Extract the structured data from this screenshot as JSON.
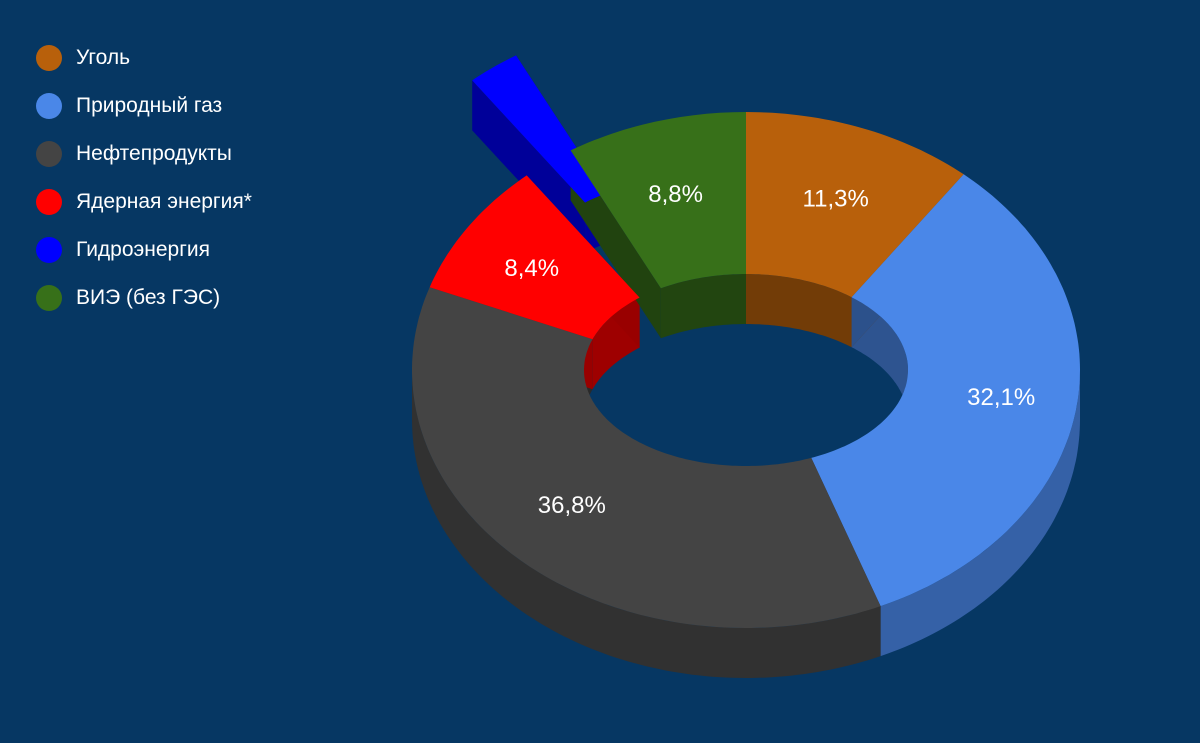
{
  "chart_data": {
    "type": "pie",
    "title": "",
    "categories": [
      "Уголь",
      "Природный газ",
      "Нефтепродукты",
      "Ядерная энергия*",
      "Гидроэнергия",
      "ВИЭ (без ГЭС)"
    ],
    "values": [
      11.3,
      32.1,
      36.8,
      8.4,
      2.6,
      8.8
    ],
    "labels": [
      "11,3%",
      "32,1%",
      "36,8%",
      "8,4%",
      "",
      "8,8%"
    ],
    "colors": [
      "#b8600b",
      "#4a87e8",
      "#444444",
      "#ff0000",
      "#0000ff",
      "#377019"
    ],
    "exploded": [
      false,
      false,
      false,
      false,
      true,
      false
    ],
    "legend_position": "top-left"
  }
}
